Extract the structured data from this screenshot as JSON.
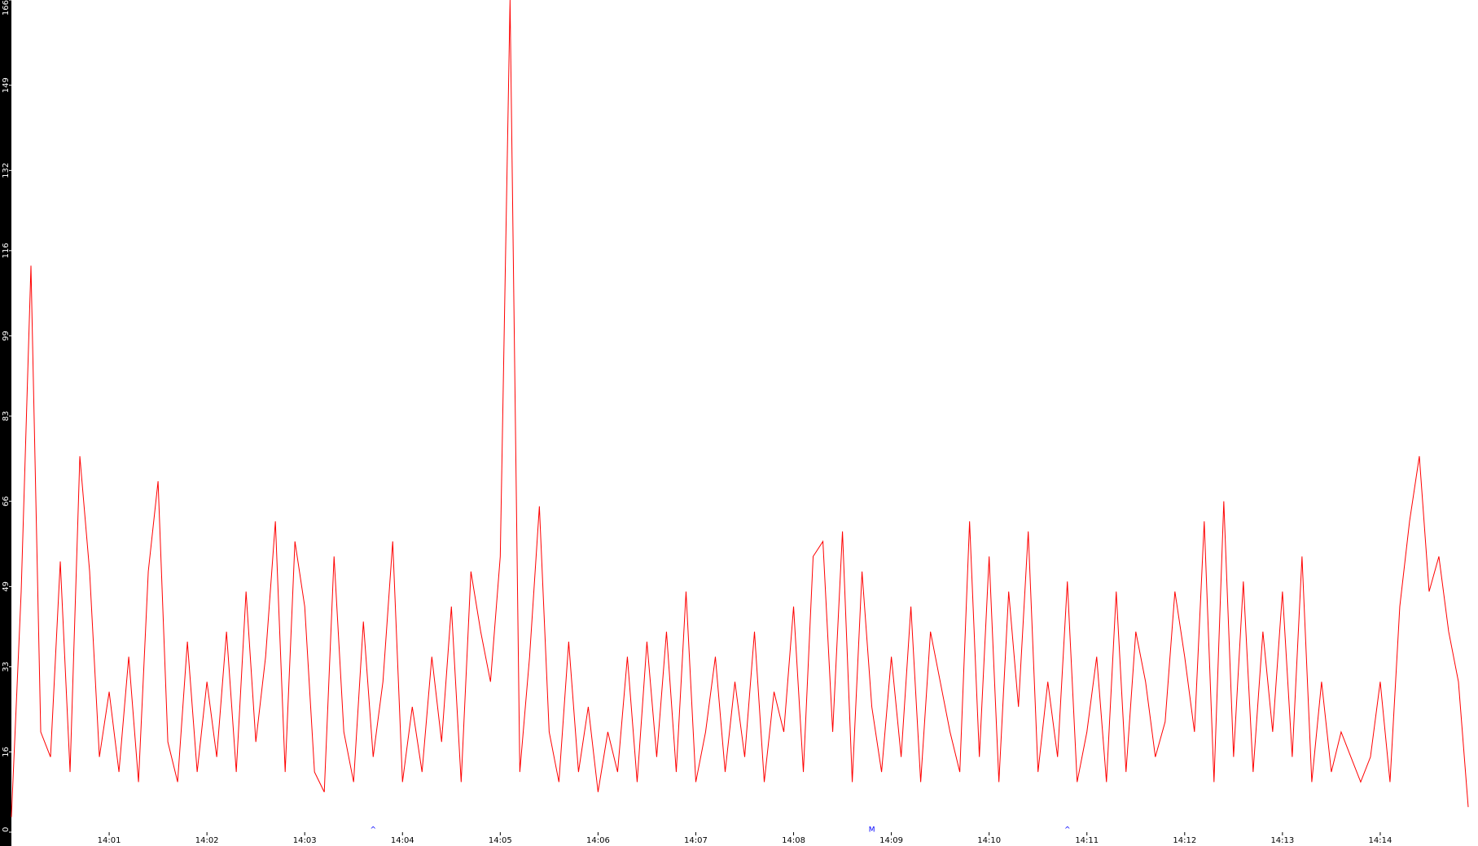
{
  "chart_data": {
    "type": "line",
    "color": "#ff0000",
    "x": [
      840.0,
      840.1,
      840.2,
      840.3,
      840.4,
      840.5,
      840.6,
      840.7,
      840.8,
      840.9,
      841.0,
      841.1,
      841.2,
      841.3,
      841.4,
      841.5,
      841.6,
      841.7,
      841.8,
      841.9,
      842.0,
      842.1,
      842.2,
      842.3,
      842.4,
      842.5,
      842.6,
      842.7,
      842.8,
      842.9,
      843.0,
      843.1,
      843.2,
      843.3,
      843.4,
      843.5,
      843.6,
      843.7,
      843.8,
      843.9,
      844.0,
      844.1,
      844.2,
      844.3,
      844.4,
      844.5,
      844.6,
      844.7,
      844.8,
      844.9,
      845.0,
      845.1,
      845.2,
      845.3,
      845.4,
      845.5,
      845.6,
      845.7,
      845.8,
      845.9,
      846.0,
      846.1,
      846.2,
      846.3,
      846.4,
      846.5,
      846.6,
      846.7,
      846.8,
      846.9,
      847.0,
      847.1,
      847.2,
      847.3,
      847.4,
      847.5,
      847.6,
      847.7,
      847.8,
      847.9,
      848.0,
      848.1,
      848.2,
      848.3,
      848.4,
      848.5,
      848.6,
      848.7,
      848.8,
      848.9,
      849.0,
      849.1,
      849.2,
      849.3,
      849.4,
      849.5,
      849.6,
      849.7,
      849.8,
      849.9,
      850.0,
      850.1,
      850.2,
      850.3,
      850.4,
      850.5,
      850.6,
      850.7,
      850.8,
      850.9,
      851.0,
      851.1,
      851.2,
      851.3,
      851.4,
      851.5,
      851.6,
      851.7,
      851.8,
      851.9,
      852.0,
      852.1,
      852.2,
      852.3,
      852.4,
      852.5,
      852.6,
      852.7,
      852.8,
      852.9,
      853.0,
      853.1,
      853.2,
      853.3,
      853.4,
      853.5,
      853.6,
      853.7,
      853.8,
      853.9,
      854.0,
      854.1,
      854.2,
      854.3,
      854.4,
      854.5,
      854.6,
      854.7,
      854.8,
      854.9
    ],
    "values": [
      3,
      48,
      113,
      20,
      15,
      54,
      12,
      75,
      52,
      15,
      28,
      12,
      35,
      10,
      52,
      70,
      18,
      10,
      38,
      12,
      30,
      15,
      40,
      12,
      48,
      18,
      35,
      62,
      12,
      58,
      45,
      12,
      8,
      55,
      20,
      10,
      42,
      15,
      30,
      58,
      10,
      25,
      12,
      35,
      18,
      45,
      10,
      52,
      40,
      30,
      55,
      166,
      12,
      35,
      65,
      20,
      10,
      38,
      12,
      25,
      8,
      20,
      12,
      35,
      10,
      38,
      15,
      40,
      12,
      48,
      10,
      20,
      35,
      12,
      30,
      15,
      40,
      10,
      28,
      20,
      45,
      12,
      55,
      58,
      20,
      60,
      10,
      52,
      25,
      12,
      35,
      15,
      45,
      10,
      40,
      30,
      20,
      12,
      62,
      15,
      55,
      10,
      48,
      25,
      60,
      12,
      30,
      15,
      50,
      10,
      20,
      35,
      10,
      48,
      12,
      40,
      30,
      15,
      22,
      48,
      35,
      20,
      62,
      10,
      66,
      15,
      50,
      12,
      40,
      20,
      48,
      15,
      55,
      10,
      30,
      12,
      20,
      15,
      10,
      15,
      30,
      10,
      45,
      62,
      75,
      48,
      55,
      40,
      30,
      5
    ],
    "xlim": [
      840,
      855
    ],
    "xticks": [
      {
        "value": 841,
        "label": "14:01"
      },
      {
        "value": 842,
        "label": "14:02"
      },
      {
        "value": 843,
        "label": "14:03"
      },
      {
        "value": 844,
        "label": "14:04"
      },
      {
        "value": 845,
        "label": "14:05"
      },
      {
        "value": 846,
        "label": "14:06"
      },
      {
        "value": 847,
        "label": "14:07"
      },
      {
        "value": 848,
        "label": "14:08"
      },
      {
        "value": 849,
        "label": "14:09"
      },
      {
        "value": 850,
        "label": "14:10"
      },
      {
        "value": 851,
        "label": "14:11"
      },
      {
        "value": 852,
        "label": "14:12"
      },
      {
        "value": 853,
        "label": "14:13"
      },
      {
        "value": 854,
        "label": "14:14"
      }
    ],
    "ylim": [
      0,
      166
    ],
    "yticks": [
      0,
      16,
      33,
      49,
      66,
      83,
      99,
      116,
      132,
      149,
      166
    ],
    "annotations": [
      {
        "x": 843.7,
        "label": "^"
      },
      {
        "x": 848.8,
        "label": "M"
      },
      {
        "x": 850.8,
        "label": "^"
      }
    ],
    "annotation_color": "#0000ff"
  }
}
